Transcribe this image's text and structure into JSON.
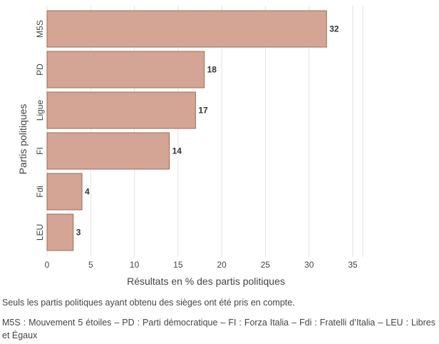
{
  "chart_data": {
    "type": "bar",
    "orientation": "horizontal",
    "categories": [
      "M5S",
      "PD",
      "Ligue",
      "FI",
      "Fdi",
      "LEU"
    ],
    "values": [
      32,
      18,
      17,
      14,
      4,
      3
    ],
    "xlabel": "Résultats en % des partis politiques",
    "ylabel": "Partis politiques",
    "xlim": [
      0,
      35
    ],
    "xticks": [
      0,
      5,
      10,
      15,
      20,
      25,
      30,
      35
    ],
    "grid": true,
    "bar_color": "#d4a594",
    "bar_edge_color": "#9e6a5a"
  },
  "notes": {
    "scope": "Seuls les partis politiques ayant obtenu des sièges ont été pris en compte.",
    "legend": "M5S : Mouvement 5 étoiles – PD : Parti démocratique – FI : Forza Italia – Fdi : Fratelli d’Italia – LEU : Libres et Égaux"
  }
}
